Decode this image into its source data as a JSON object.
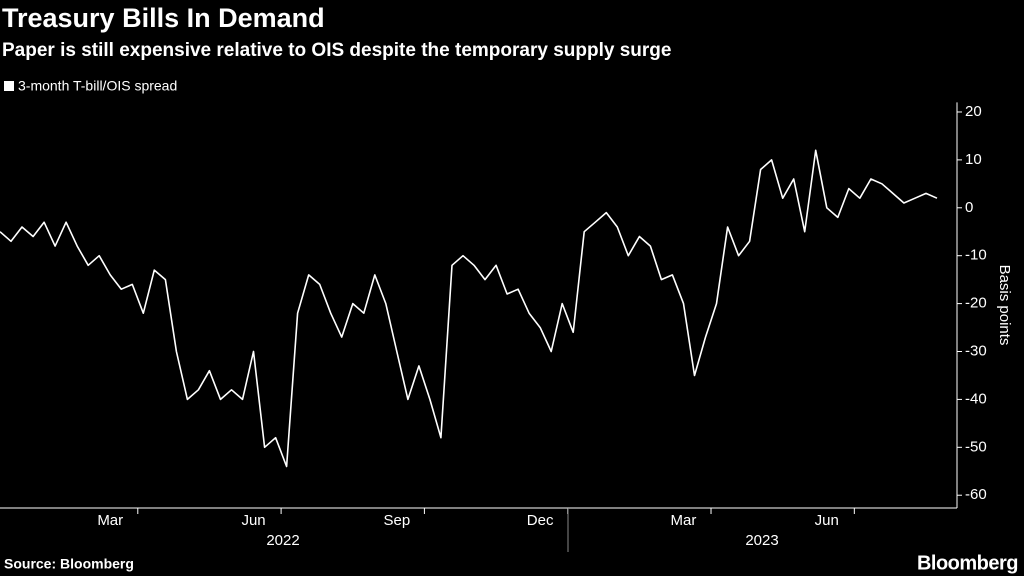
{
  "chart_data": {
    "type": "line",
    "title": "Treasury Bills In Demand",
    "subtitle": "Paper is still expensive relative to OIS despite the temporary supply surge",
    "y_label": "Basis points",
    "source": "Source: Bloomberg",
    "logo": "Bloomberg",
    "x_group_labels": [
      "2022",
      "2023"
    ],
    "categories": [
      null,
      null,
      null,
      null,
      null,
      null,
      null,
      null,
      null,
      null,
      "Mar",
      null,
      null,
      null,
      null,
      null,
      null,
      null,
      null,
      null,
      null,
      null,
      null,
      "Jun",
      null,
      null,
      null,
      null,
      null,
      null,
      null,
      null,
      null,
      null,
      null,
      null,
      "Sep",
      null,
      null,
      null,
      null,
      null,
      null,
      null,
      null,
      null,
      null,
      null,
      null,
      "Dec",
      null,
      null,
      null,
      null,
      null,
      null,
      null,
      null,
      null,
      null,
      null,
      null,
      "Mar",
      null,
      null,
      null,
      null,
      null,
      null,
      null,
      null,
      null,
      null,
      null,
      null,
      "Jun",
      null,
      null,
      null,
      null,
      null,
      null,
      null,
      null,
      null,
      null
    ],
    "series": [
      {
        "name": "3-month T-bill/OIS spread",
        "color": "#ffffff",
        "values": [
          -5,
          -7,
          -4,
          -6,
          -3,
          -8,
          -3,
          -8,
          -12,
          -10,
          -14,
          -17,
          -16,
          -22,
          -13,
          -15,
          -30,
          -40,
          -38,
          -34,
          -40,
          -38,
          -40,
          -30,
          -50,
          -48,
          -54,
          -22,
          -14,
          -16,
          -22,
          -27,
          -20,
          -22,
          -14,
          -20,
          -30,
          -40,
          -33,
          -40,
          -48,
          -12,
          -10,
          -12,
          -15,
          -12,
          -18,
          -17,
          -22,
          -25,
          -30,
          -20,
          -26,
          -5,
          -3,
          -1,
          -4,
          -10,
          -6,
          -8,
          -15,
          -14,
          -20,
          -35,
          -27,
          -20,
          -4,
          -10,
          -7,
          8,
          10,
          2,
          6,
          -5,
          12,
          0,
          -2,
          4,
          2,
          6,
          5,
          3,
          1,
          2,
          3,
          2
        ]
      }
    ],
    "ylim": [
      -62,
      22
    ],
    "yticks": [
      20,
      10,
      0,
      -10,
      -20,
      -30,
      -40,
      -50,
      -60
    ],
    "legend": "top-left"
  }
}
